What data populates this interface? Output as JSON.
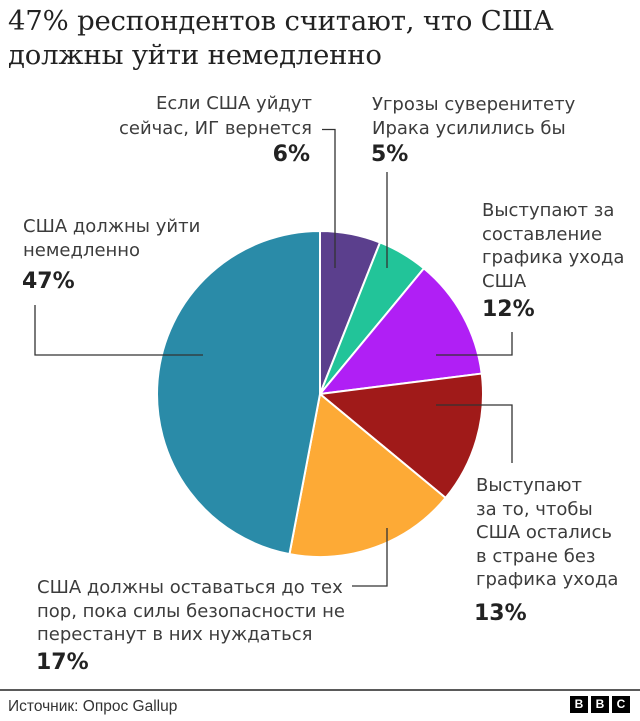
{
  "title": {
    "line1": "47% респондентов считают, что США",
    "line2": "должны уйти немедленно"
  },
  "chart_data": {
    "type": "pie",
    "title": "47% респондентов считают, что США должны уйти немедленно",
    "unit": "%",
    "start_angle_deg": 0,
    "direction": "clockwise",
    "categories": [
      "Если США уйдут сейчас, ИГ вернется",
      "Угрозы суверенитету Ирака усилились бы",
      "Выступают за составление графика ухода США",
      "Выступают за то, чтобы США остались в стране без графика ухода",
      "США должны оставаться до тех пор, пока силы безопасности не перестанут в них нуждаться",
      "США должны уйти немедленно"
    ],
    "values": [
      6,
      5,
      12,
      13,
      17,
      47
    ],
    "slices": [
      {
        "label_lines": [
          "Если США уйдут",
          "сейчас, ИГ вернется"
        ],
        "value": 6,
        "value_label": "6%",
        "color": "#5b3f8d"
      },
      {
        "label_lines": [
          "Угрозы суверенитету",
          "Ирака усилились бы"
        ],
        "value": 5,
        "value_label": "5%",
        "color": "#22c499"
      },
      {
        "label_lines": [
          "Выступают за",
          "составление",
          "графика ухода",
          "США"
        ],
        "value": 12,
        "value_label": "12%",
        "color": "#b01ff5"
      },
      {
        "label_lines": [
          "Выступают",
          "за то, чтобы",
          "США остались",
          "в стране без",
          "графика ухода"
        ],
        "value": 13,
        "value_label": "13%",
        "color": "#a01a19"
      },
      {
        "label_lines": [
          "США должны оставаться до тех",
          "пор, пока силы безопасности не",
          "перестанут в них нуждаться"
        ],
        "value": 17,
        "value_label": "17%",
        "color": "#fdaa36"
      },
      {
        "label_lines": [
          "США должны уйти",
          "немедленно"
        ],
        "value": 47,
        "value_label": "47%",
        "color": "#2a8ba8"
      }
    ]
  },
  "footer": {
    "source": "Источник: Опрос Gallup",
    "logo": [
      "B",
      "B",
      "C"
    ]
  }
}
